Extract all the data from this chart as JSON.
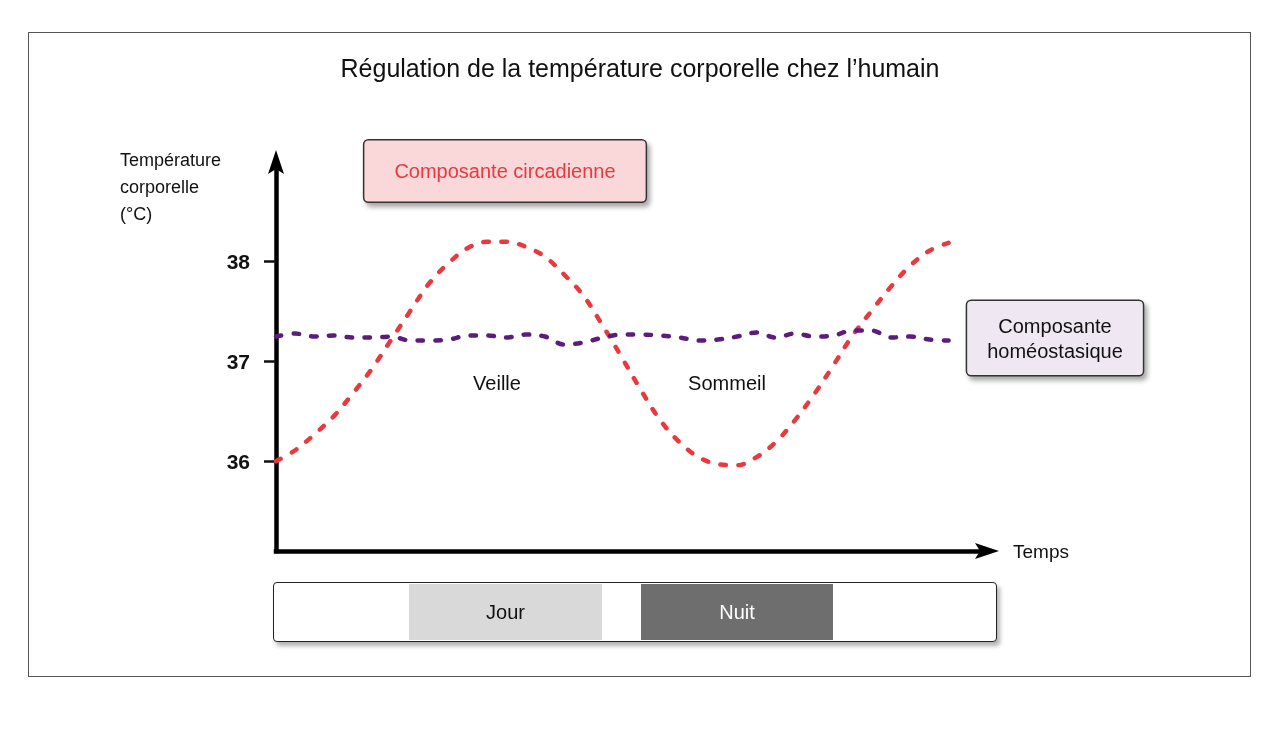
{
  "chart_data": {
    "type": "line",
    "title": "Régulation de la température corporelle chez l’humain",
    "xlabel": "Temps",
    "ylabel": "Température corporelle (°C)",
    "categories": [
      null,
      null,
      null,
      null,
      null,
      null,
      null,
      null,
      null,
      null,
      null,
      null,
      null,
      null,
      null,
      null,
      null,
      null,
      null,
      null,
      null,
      null,
      null,
      null,
      null,
      null,
      null,
      null,
      null,
      null,
      null,
      null,
      null,
      null,
      null,
      null,
      null,
      null
    ],
    "series": [
      {
        "name": "Composante circadienne",
        "color": "#e8393f",
        "values": [
          36.0,
          36.11,
          36.27,
          36.45,
          36.68,
          36.93,
          37.22,
          37.51,
          37.79,
          37.99,
          38.14,
          38.2,
          38.2,
          38.15,
          38.05,
          37.87,
          37.66,
          37.36,
          37.04,
          36.71,
          36.41,
          36.19,
          36.04,
          35.97,
          35.96,
          36.04,
          36.19,
          36.41,
          36.67,
          36.96,
          37.26,
          37.51,
          37.75,
          37.96,
          38.11,
          38.19,
          null,
          null
        ]
      },
      {
        "name": "Composante homéostasique",
        "color": "#5b1c7c",
        "values": [
          37.25,
          37.28,
          37.25,
          37.26,
          37.24,
          37.24,
          37.25,
          37.21,
          37.21,
          37.22,
          37.26,
          37.26,
          37.24,
          37.27,
          37.25,
          37.17,
          37.19,
          37.24,
          37.27,
          37.27,
          37.26,
          37.24,
          37.21,
          37.22,
          37.25,
          37.29,
          37.24,
          37.28,
          37.25,
          37.26,
          37.31,
          37.31,
          37.24,
          37.25,
          37.22,
          37.21,
          null,
          null
        ]
      }
    ],
    "ylim": [
      35.1,
      39
    ],
    "yticks": [
      36,
      37,
      38
    ],
    "tick_labels": "y",
    "line_style": "dashed",
    "marker": "none",
    "annotations": [
      "Veille",
      "Sommeil",
      "Jour",
      "Nuit"
    ]
  }
}
